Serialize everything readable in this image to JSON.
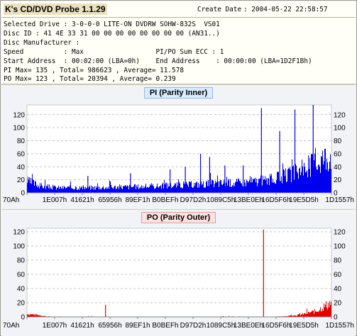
{
  "header": {
    "app_title": "K's CD/DVD Probe 1.1.29",
    "create_date_label": "Create Date",
    "create_date_value": ": 2004-05-22 22:58:57",
    "lines": [
      "Selected Drive : 3-0-0-0 LITE-ON DVDRW SOHW-832S  VS01",
      "Disc ID : 41 4E 33 31 00 00 00 00 00 00 00 00 (AN31..)",
      "Disc Manufacturer :",
      "Speed          : Max                  PI/PO Sum ECC : 1",
      "Start Address  : 00:02:00 (LBA=0h)    End Address    : 00:00:00 (LBA=1D2F1Bh)",
      "PI Max= 135 , Total= 986623 , Average= 11.578",
      "PO Max= 123 , Total= 20394 , Average= 0.239"
    ]
  },
  "chart_data": [
    {
      "type": "bar",
      "title": "PI (Parity Inner)",
      "color": "#0000f0",
      "ylim": [
        0,
        135
      ],
      "yticks": [
        0,
        20,
        40,
        60,
        80,
        100,
        120
      ],
      "xtick_labels": [
        "70Ah",
        "1E007h",
        "41621h",
        "65956h",
        "89EF1h",
        "B0BEFh",
        "D97D2h",
        "1089C5h",
        "13BE0Eh",
        "16D5F6h",
        "19E5D5h",
        "1D1557h"
      ],
      "grid": true,
      "baseline_profile": {
        "x": [
          0,
          0.05,
          0.1,
          0.2,
          0.3,
          0.4,
          0.5,
          0.6,
          0.7,
          0.8,
          0.85,
          0.9,
          0.95,
          1.0
        ],
        "y": [
          18,
          10,
          8,
          8,
          9,
          10,
          12,
          14,
          16,
          20,
          26,
          34,
          48,
          60
        ]
      },
      "spikes": [
        {
          "x": 0.2,
          "y": 26
        },
        {
          "x": 0.34,
          "y": 30
        },
        {
          "x": 0.47,
          "y": 36
        },
        {
          "x": 0.52,
          "y": 40
        },
        {
          "x": 0.57,
          "y": 60
        },
        {
          "x": 0.6,
          "y": 55
        },
        {
          "x": 0.65,
          "y": 42
        },
        {
          "x": 0.71,
          "y": 42
        },
        {
          "x": 0.77,
          "y": 130
        },
        {
          "x": 0.83,
          "y": 95
        },
        {
          "x": 0.88,
          "y": 128
        },
        {
          "x": 0.94,
          "y": 135
        }
      ]
    },
    {
      "type": "bar",
      "title": "PO (Parity Outer)",
      "color": "#e00000",
      "ylim": [
        0,
        125
      ],
      "yticks": [
        0,
        20,
        40,
        60,
        80,
        100,
        120
      ],
      "xtick_labels": [
        "70Ah",
        "1E007h",
        "41621h",
        "65956h",
        "89EF1h",
        "B0BEFh",
        "D97D2h",
        "1089C5h",
        "13BE0Eh",
        "16D5F6h",
        "19E5D5h",
        "1D1557h"
      ],
      "grid": true,
      "baseline_profile": {
        "x": [
          0,
          0.03,
          0.06,
          0.1,
          0.4,
          0.8,
          0.85,
          0.9,
          0.95,
          1.0
        ],
        "y": [
          4,
          3,
          1,
          0,
          0,
          0,
          1,
          3,
          8,
          20
        ]
      },
      "spikes": [
        {
          "x": 0.258,
          "y": 17
        },
        {
          "x": 0.777,
          "y": 123
        }
      ]
    }
  ]
}
